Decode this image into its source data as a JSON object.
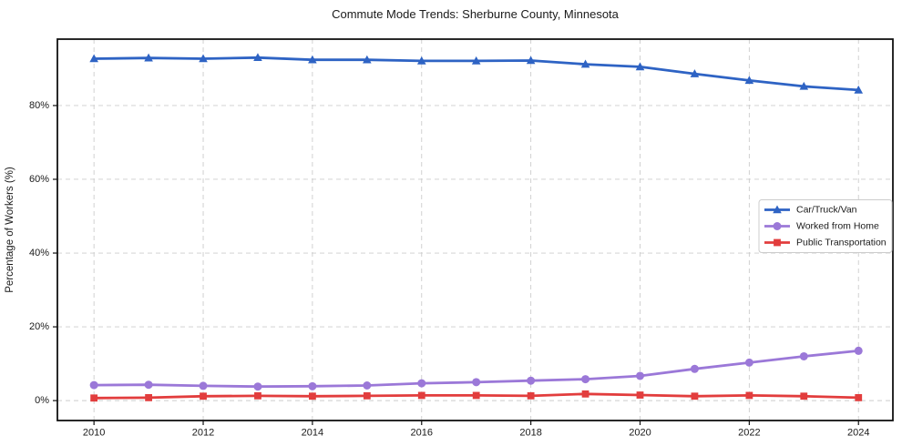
{
  "chart_data": {
    "type": "line",
    "title": "Commute Mode Trends: Sherburne County, Minnesota",
    "xlabel": "",
    "ylabel": "Percentage of Workers (%)",
    "x": [
      2010,
      2011,
      2012,
      2013,
      2014,
      2015,
      2016,
      2017,
      2018,
      2019,
      2020,
      2021,
      2022,
      2023,
      2024
    ],
    "series": [
      {
        "name": "Car/Truck/Van",
        "marker": "triangle",
        "color": "#2e63c4",
        "values": [
          92.7,
          92.9,
          92.7,
          93.0,
          92.4,
          92.4,
          92.1,
          92.1,
          92.2,
          91.2,
          90.5,
          88.6,
          86.8,
          85.2,
          84.2
        ]
      },
      {
        "name": "Worked from Home",
        "marker": "circle",
        "color": "#9b78d8",
        "values": [
          4.2,
          4.3,
          4.0,
          3.8,
          3.9,
          4.1,
          4.7,
          5.0,
          5.4,
          5.8,
          6.7,
          8.6,
          10.3,
          12.0,
          13.5
        ]
      },
      {
        "name": "Public Transportation",
        "marker": "square",
        "color": "#e23d3d",
        "values": [
          0.7,
          0.8,
          1.2,
          1.3,
          1.2,
          1.3,
          1.4,
          1.4,
          1.3,
          1.8,
          1.5,
          1.2,
          1.4,
          1.2,
          0.8
        ]
      }
    ],
    "x_ticks": [
      2010,
      2012,
      2014,
      2016,
      2018,
      2020,
      2022,
      2024
    ],
    "x_tick_labels": [
      "2010",
      "2012",
      "2014",
      "2016",
      "2018",
      "2020",
      "2022",
      "2024"
    ],
    "y_ticks": [
      0,
      20,
      40,
      60,
      80
    ],
    "y_tick_labels": [
      "0%",
      "20%",
      "40%",
      "60%",
      "80%"
    ],
    "xlim": [
      2009.33,
      2024.63
    ],
    "ylim": [
      -5.4,
      98.0
    ],
    "grid": true,
    "grid_on": "both",
    "grid_style": "dashed",
    "grid_color": "#cccccc",
    "axis_color": "#111111",
    "text_color": "#1a1a1a",
    "background": "#ffffff",
    "legend": {
      "position": "center right",
      "entries": [
        "Car/Truck/Van",
        "Worked from Home",
        "Public Transportation"
      ]
    }
  }
}
